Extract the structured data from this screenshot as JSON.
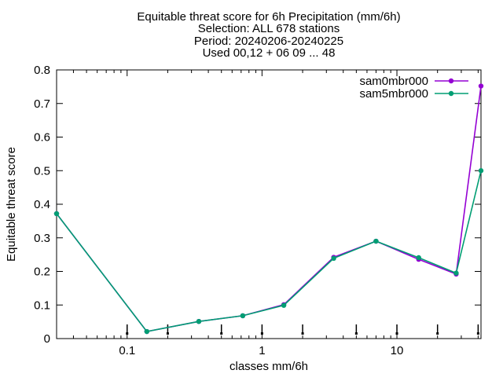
{
  "chart_data": {
    "type": "line",
    "title": [
      "Equitable threat score  for 6h Precipitation (mm/6h)",
      "Selection: ALL    678 stations",
      "Period: 20240206-20240225",
      "Used 00,12 + 06 09 ... 48"
    ],
    "xlabel": "classes mm/6h",
    "ylabel": "Equitable threat score",
    "xscale": "log",
    "xlim": [
      0.03,
      42
    ],
    "ylim": [
      0,
      0.8
    ],
    "x_ticks": [
      0.1,
      1,
      10
    ],
    "x_tick_labels": [
      "0.1",
      "1",
      "10"
    ],
    "y_ticks": [
      0,
      0.1,
      0.2,
      0.3,
      0.4,
      0.5,
      0.6,
      0.7,
      0.8
    ],
    "y_tick_labels": [
      "0",
      "0.1",
      "0.2",
      "0.3",
      "0.4",
      "0.5",
      "0.6",
      "0.7",
      "0.8"
    ],
    "grid": false,
    "legend_position": "top-right",
    "x": [
      0.03,
      0.14,
      0.34,
      0.72,
      1.45,
      3.4,
      7.0,
      14.5,
      27.5,
      42
    ],
    "series": [
      {
        "name": "sam0mbr000",
        "color": "#9400d3",
        "values": [
          0.372,
          0.021,
          0.051,
          0.068,
          0.101,
          0.242,
          0.29,
          0.236,
          0.192,
          0.752
        ]
      },
      {
        "name": "sam5mbr000",
        "color": "#009e73",
        "values": [
          0.372,
          0.021,
          0.051,
          0.068,
          0.099,
          0.239,
          0.29,
          0.241,
          0.195,
          0.5
        ]
      }
    ],
    "threshold_markers": [
      0.1,
      0.2,
      0.5,
      1,
      2,
      5,
      10,
      20,
      40
    ]
  }
}
